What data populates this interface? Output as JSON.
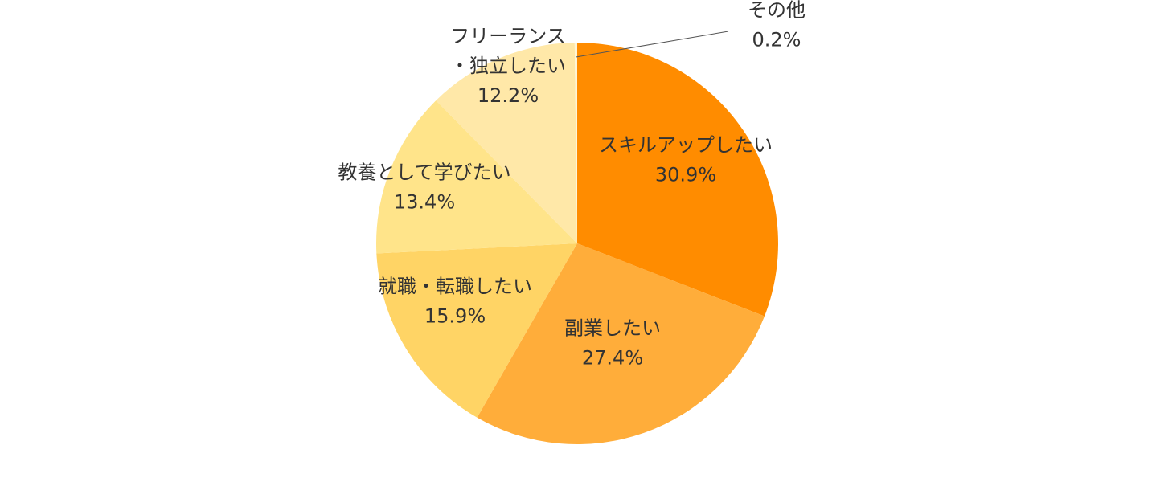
{
  "chart_data": {
    "type": "pie",
    "title": "",
    "start_angle_deg": 0,
    "direction": "clockwise",
    "slices": [
      {
        "label": [
          "スキルアップしたい"
        ],
        "value": 30.9,
        "value_label": "30.9%",
        "color": "#ff8c00"
      },
      {
        "label": [
          "副業したい"
        ],
        "value": 27.4,
        "value_label": "27.4%",
        "color": "#ffad3a"
      },
      {
        "label": [
          "就職・転職したい"
        ],
        "value": 15.9,
        "value_label": "15.9%",
        "color": "#ffd465"
      },
      {
        "label": [
          "教養として学びたい"
        ],
        "value": 13.4,
        "value_label": "13.4%",
        "color": "#ffe48a"
      },
      {
        "label": [
          "フリーランス",
          "・独立したい"
        ],
        "value": 12.2,
        "value_label": "12.2%",
        "color": "#ffe8a8"
      },
      {
        "label": [
          "その他"
        ],
        "value": 0.2,
        "value_label": "0.2%",
        "color": "#fff5d6",
        "callout": true
      }
    ]
  }
}
